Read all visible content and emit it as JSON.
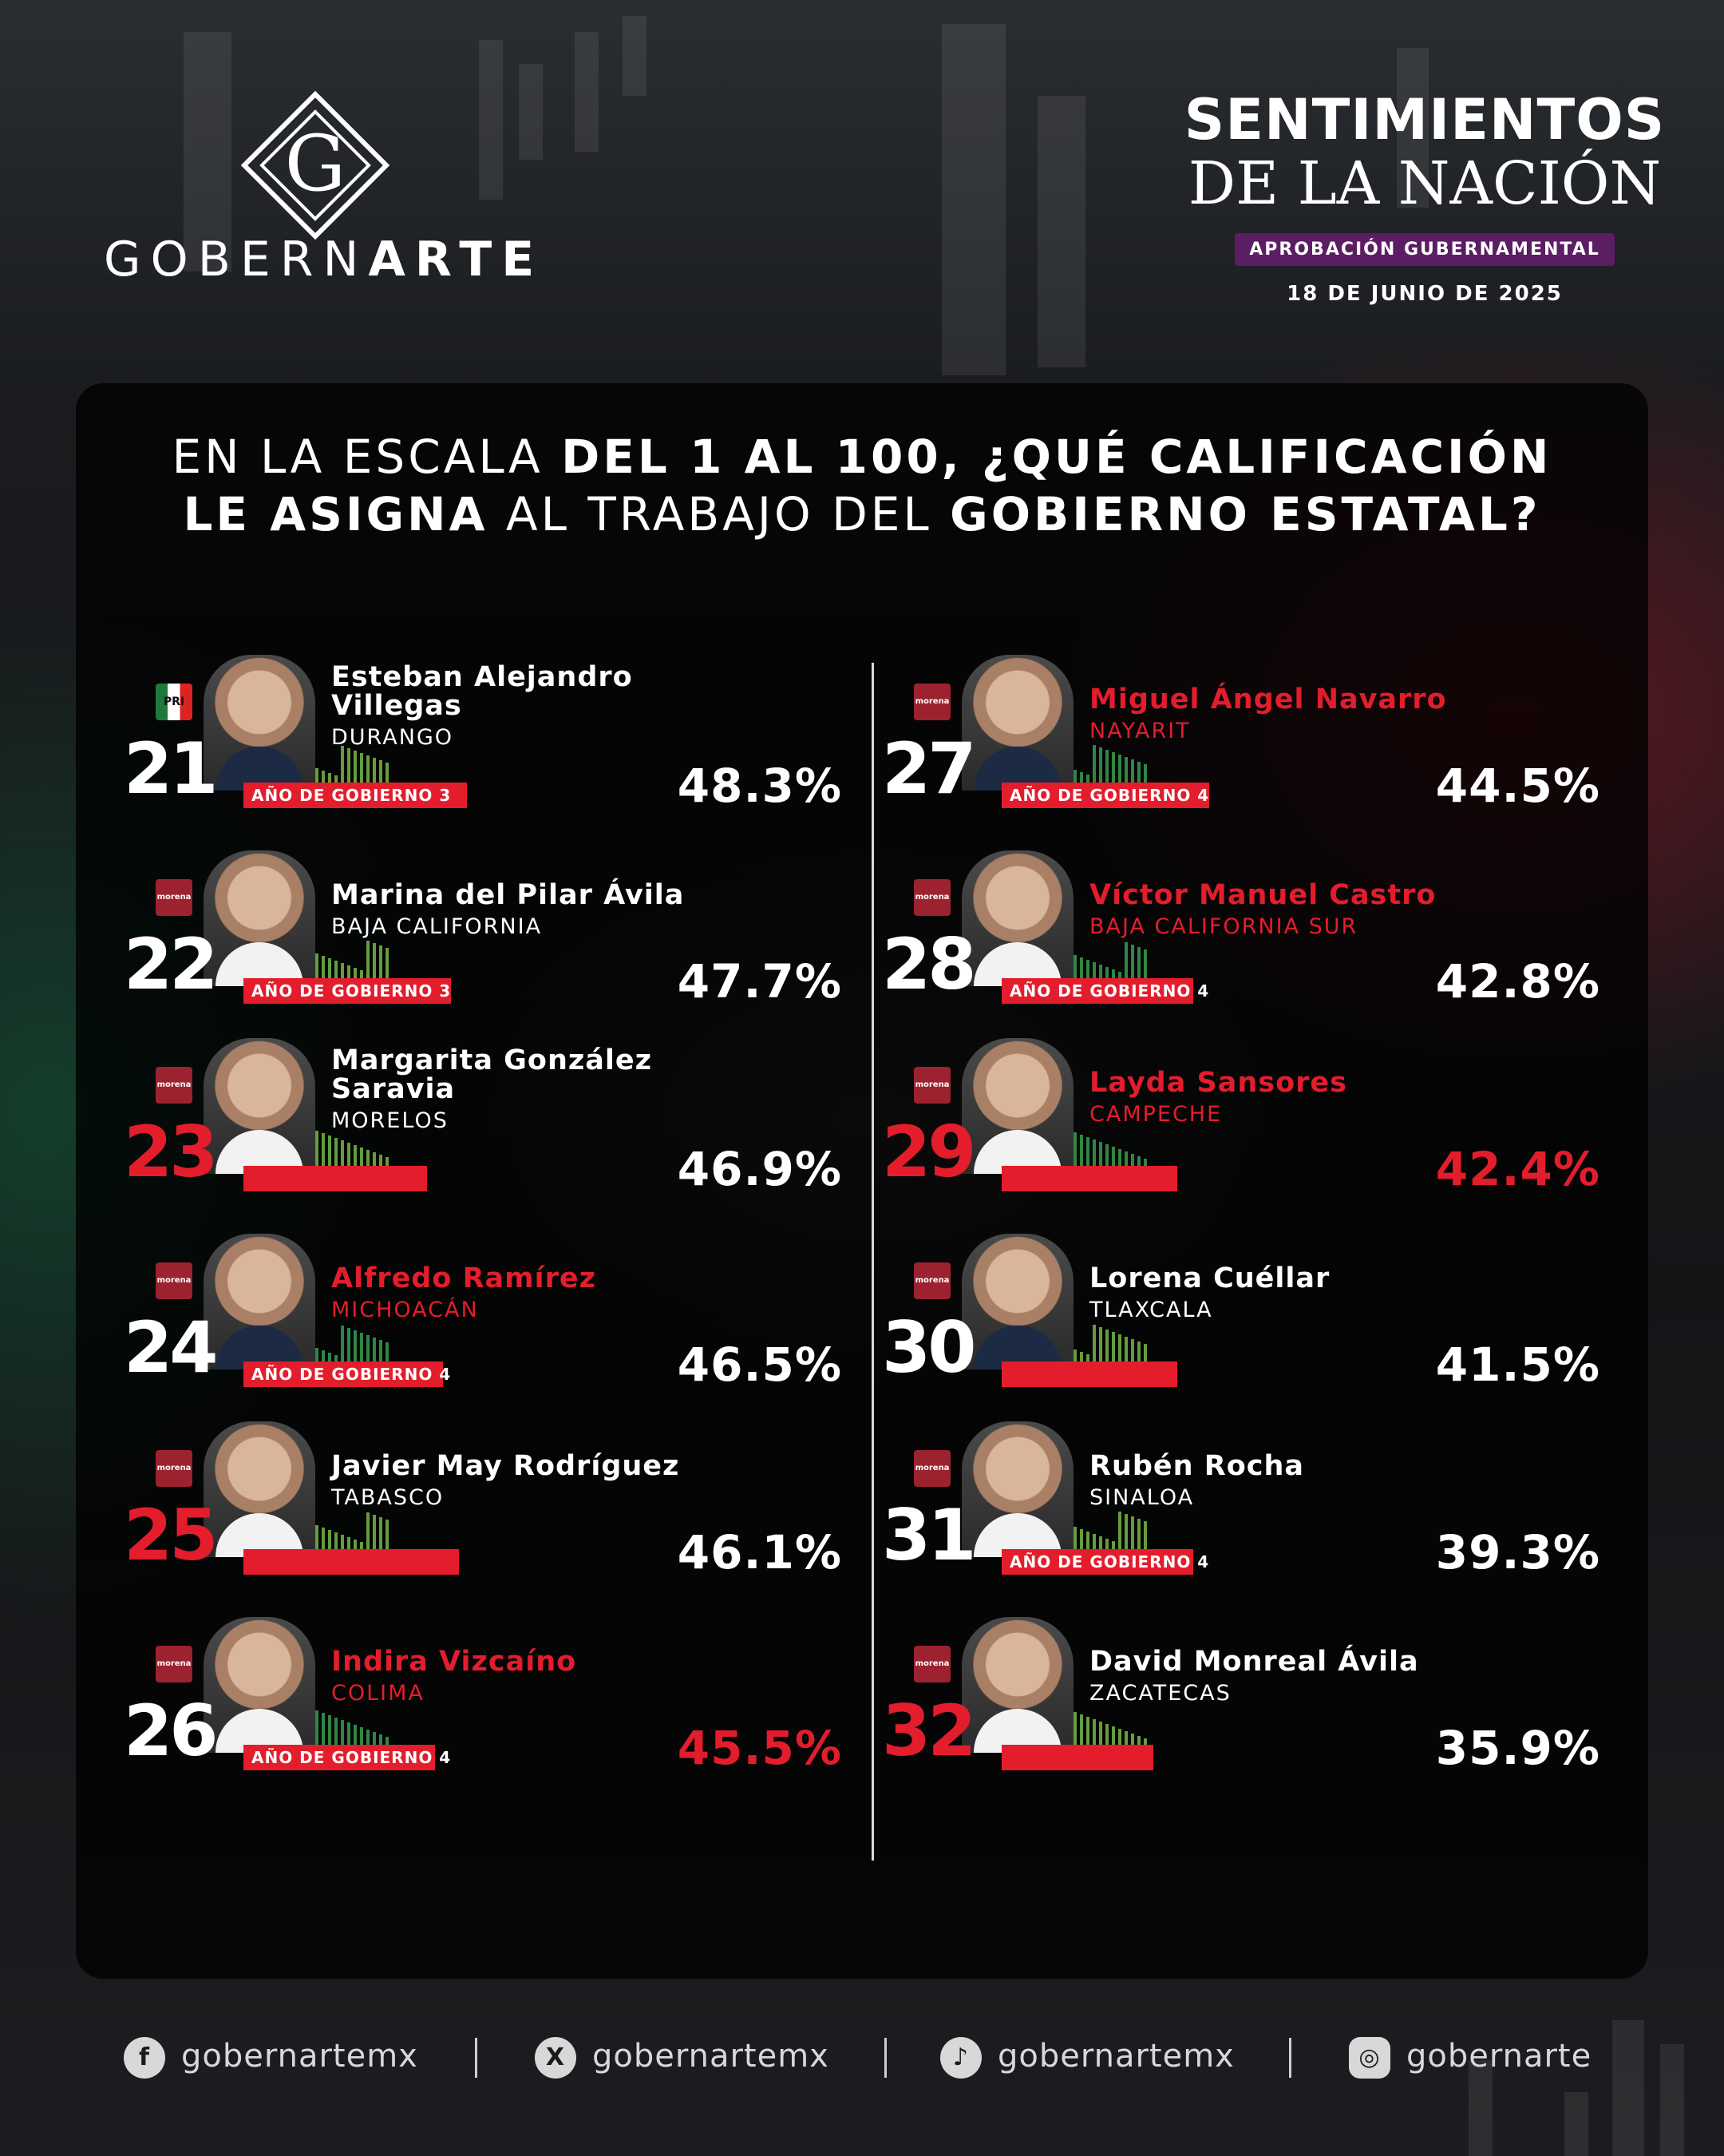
{
  "brand": {
    "name_part1": "GOBERN",
    "name_part2": "ARTE",
    "mark_letter": "G"
  },
  "header": {
    "title_line1": "SENTIMIENTOS",
    "title_line2": "DE LA NACIÓN",
    "badge": "APROBACIÓN GUBERNAMENTAL",
    "date": "18 DE JUNIO DE 2025"
  },
  "question": {
    "l1a": "EN LA ESCALA ",
    "l1b": "DEL 1 AL 100, ¿QUÉ CALIFICACIÓN",
    "l2a": "LE ASIGNA",
    "l2b": " AL TRABAJO DEL ",
    "l2c": "GOBIERNO ESTATAL?"
  },
  "entries": [
    {
      "rank": "21",
      "name": "Esteban Alejandro Villegas",
      "state": "DURANGO",
      "term": "AÑO DE GOBIERNO 3",
      "pct": "48.3%",
      "party": "PRI",
      "highlight": false
    },
    {
      "rank": "22",
      "name": "Marina del Pilar Ávila",
      "state": "BAJA CALIFORNIA",
      "term": "AÑO DE GOBIERNO 3",
      "pct": "47.7%",
      "party": "morena",
      "highlight": false
    },
    {
      "rank": "23",
      "name": "Margarita González Saravia",
      "state": "MORELOS",
      "term": "",
      "pct": "46.9%",
      "party": "morena",
      "highlight": false
    },
    {
      "rank": "24",
      "name": "Alfredo Ramírez",
      "state": "MICHOACÁN",
      "term": "AÑO DE GOBIERNO 4",
      "pct": "46.5%",
      "party": "morena",
      "highlight": true
    },
    {
      "rank": "25",
      "name": "Javier May Rodríguez",
      "state": "TABASCO",
      "term": "",
      "pct": "46.1%",
      "party": "morena",
      "highlight": false
    },
    {
      "rank": "26",
      "name": "Indira Vizcaíno",
      "state": "COLIMA",
      "term": "AÑO DE GOBIERNO 4",
      "pct": "45.5%",
      "party": "morena",
      "highlight": true
    },
    {
      "rank": "27",
      "name": "Miguel Ángel Navarro",
      "state": "NAYARIT",
      "term": "AÑO DE GOBIERNO 4",
      "pct": "44.5%",
      "party": "morena",
      "highlight": true
    },
    {
      "rank": "28",
      "name": "Víctor Manuel Castro",
      "state": "BAJA CALIFORNIA SUR",
      "term": "AÑO DE GOBIERNO 4",
      "pct": "42.8%",
      "party": "morena",
      "highlight": true
    },
    {
      "rank": "29",
      "name": "Layda Sansores",
      "state": "CAMPECHE",
      "term": "",
      "pct": "42.4%",
      "party": "morena",
      "highlight": true
    },
    {
      "rank": "30",
      "name": "Lorena Cuéllar",
      "state": "TLAXCALA",
      "term": "",
      "pct": "41.5%",
      "party": "morena",
      "highlight": false
    },
    {
      "rank": "31",
      "name": "Rubén Rocha",
      "state": "SINALOA",
      "term": "AÑO DE GOBIERNO 4",
      "pct": "39.3%",
      "party": "morena",
      "highlight": false
    },
    {
      "rank": "32",
      "name": "David Monreal Ávila",
      "state": "ZACATECAS",
      "term": "",
      "pct": "35.9%",
      "party": "morena",
      "highlight": false
    }
  ],
  "social": [
    {
      "icon": "facebook-icon",
      "handle": "gobernartemx"
    },
    {
      "icon": "x-icon",
      "handle": "gobernartemx"
    },
    {
      "icon": "tiktok-icon",
      "handle": "gobernartemx"
    },
    {
      "icon": "instagram-icon",
      "handle": "gobernarte"
    }
  ],
  "colors": {
    "accent_red": "#e31d2c",
    "badge_purple": "#5b1d63",
    "panel": "#000000"
  }
}
